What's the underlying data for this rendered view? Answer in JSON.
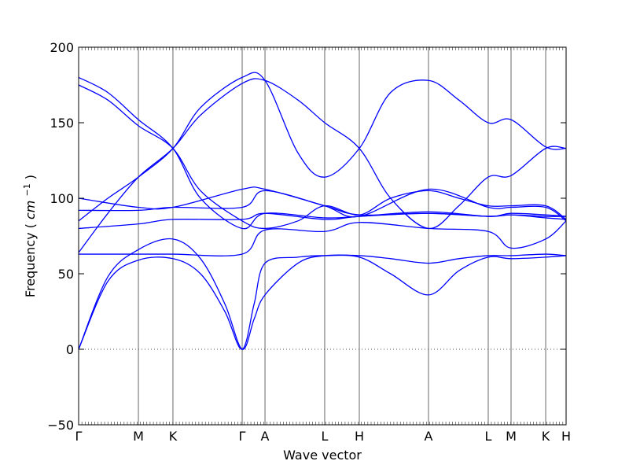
{
  "chart_data": {
    "type": "line",
    "xlabel": "Wave vector",
    "ylabel": "Frequency",
    "ylabel_unit": "cm",
    "ylabel_exp": "−1",
    "ylim": [
      -50,
      200
    ],
    "yticks": [
      -50,
      0,
      50,
      100,
      150,
      200
    ],
    "xlim": [
      0,
      1
    ],
    "high_symmetry_points": [
      {
        "label": "Γ",
        "x": 0.0
      },
      {
        "label": "M",
        "x": 0.1226
      },
      {
        "label": "K",
        "x": 0.1935
      },
      {
        "label": "Γ",
        "x": 0.3355
      },
      {
        "label": "A",
        "x": 0.3823
      },
      {
        "label": "L",
        "x": 0.5048
      },
      {
        "label": "H",
        "x": 0.5758
      },
      {
        "label": "A",
        "x": 0.7177
      },
      {
        "label": "L",
        "x": 0.8403
      },
      {
        "label": "M",
        "x": 0.8871
      },
      {
        "label": "K",
        "x": 0.9581
      },
      {
        "label": "H",
        "x": 1.0
      }
    ],
    "zero_line": true,
    "series": [
      {
        "values": [
          [
            0,
            0
          ],
          [
            0.06,
            45
          ],
          [
            0.1226,
            59
          ],
          [
            0.1935,
            60
          ],
          [
            0.25,
            50
          ],
          [
            0.3,
            25
          ],
          [
            0.3355,
            0
          ],
          [
            0.36,
            30
          ],
          [
            0.3823,
            57
          ],
          [
            0.45,
            61
          ],
          [
            0.5048,
            62
          ],
          [
            0.5758,
            61
          ],
          [
            0.64,
            50
          ],
          [
            0.7177,
            36
          ],
          [
            0.78,
            52
          ],
          [
            0.8403,
            61
          ],
          [
            0.8871,
            60
          ],
          [
            0.9581,
            61
          ],
          [
            1.0,
            62
          ]
        ]
      },
      {
        "values": [
          [
            0,
            0
          ],
          [
            0.06,
            48
          ],
          [
            0.1226,
            66
          ],
          [
            0.1935,
            73
          ],
          [
            0.25,
            60
          ],
          [
            0.3,
            30
          ],
          [
            0.3355,
            0
          ],
          [
            0.36,
            20
          ],
          [
            0.3823,
            36
          ],
          [
            0.45,
            57
          ],
          [
            0.5048,
            62
          ],
          [
            0.5758,
            62
          ],
          [
            0.64,
            60
          ],
          [
            0.7177,
            57
          ],
          [
            0.78,
            60
          ],
          [
            0.8403,
            62
          ],
          [
            0.8871,
            62
          ],
          [
            0.9581,
            63
          ],
          [
            1.0,
            62
          ]
        ]
      },
      {
        "values": [
          [
            0,
            63
          ],
          [
            0.1226,
            63
          ],
          [
            0.1935,
            63
          ],
          [
            0.3355,
            63
          ],
          [
            0.3823,
            79
          ],
          [
            0.5048,
            78
          ],
          [
            0.5758,
            84
          ],
          [
            0.7177,
            80
          ],
          [
            0.8403,
            78
          ],
          [
            0.8871,
            67
          ],
          [
            0.9581,
            73
          ],
          [
            1.0,
            85
          ]
        ]
      },
      {
        "values": [
          [
            0,
            64
          ],
          [
            0.06,
            90
          ],
          [
            0.1226,
            114
          ],
          [
            0.1935,
            133
          ],
          [
            0.25,
            155
          ],
          [
            0.3355,
            176
          ],
          [
            0.3823,
            178
          ],
          [
            0.45,
            165
          ],
          [
            0.5048,
            150
          ],
          [
            0.5758,
            133
          ],
          [
            0.64,
            100
          ],
          [
            0.7177,
            80
          ],
          [
            0.78,
            95
          ],
          [
            0.8403,
            114
          ],
          [
            0.8871,
            115
          ],
          [
            0.9581,
            133
          ],
          [
            1.0,
            133
          ]
        ]
      },
      {
        "values": [
          [
            0,
            85
          ],
          [
            0.06,
            100
          ],
          [
            0.1226,
            114
          ],
          [
            0.1935,
            133
          ],
          [
            0.25,
            160
          ],
          [
            0.3355,
            180
          ],
          [
            0.3823,
            178
          ],
          [
            0.45,
            130
          ],
          [
            0.5048,
            114
          ],
          [
            0.5758,
            133
          ],
          [
            0.64,
            170
          ],
          [
            0.7177,
            178
          ],
          [
            0.78,
            165
          ],
          [
            0.8403,
            150
          ],
          [
            0.8871,
            152
          ],
          [
            0.9581,
            134
          ],
          [
            1.0,
            133
          ]
        ]
      },
      {
        "values": [
          [
            0,
            175
          ],
          [
            0.06,
            165
          ],
          [
            0.1226,
            148
          ],
          [
            0.1935,
            133
          ],
          [
            0.25,
            105
          ],
          [
            0.3355,
            85
          ],
          [
            0.3823,
            80
          ],
          [
            0.45,
            85
          ],
          [
            0.5048,
            95
          ],
          [
            0.5758,
            89
          ],
          [
            0.64,
            100
          ],
          [
            0.7177,
            105
          ],
          [
            0.78,
            100
          ],
          [
            0.8403,
            95
          ],
          [
            0.8871,
            95
          ],
          [
            0.9581,
            95
          ],
          [
            1.0,
            86
          ]
        ]
      },
      {
        "values": [
          [
            0,
            180
          ],
          [
            0.06,
            170
          ],
          [
            0.1226,
            152
          ],
          [
            0.1935,
            133
          ],
          [
            0.25,
            100
          ],
          [
            0.3355,
            80
          ],
          [
            0.3823,
            90
          ],
          [
            0.5048,
            87
          ],
          [
            0.5758,
            88
          ],
          [
            0.7177,
            91
          ],
          [
            0.8403,
            88
          ],
          [
            0.8871,
            90
          ],
          [
            0.9581,
            89
          ],
          [
            1.0,
            88
          ]
        ]
      },
      {
        "values": [
          [
            0,
            80
          ],
          [
            0.1226,
            83
          ],
          [
            0.1935,
            86
          ],
          [
            0.3355,
            86
          ],
          [
            0.3823,
            90
          ],
          [
            0.5048,
            86
          ],
          [
            0.5758,
            88
          ],
          [
            0.7177,
            90
          ],
          [
            0.8403,
            88
          ],
          [
            0.8871,
            89
          ],
          [
            0.9581,
            87
          ],
          [
            1.0,
            86
          ]
        ]
      },
      {
        "values": [
          [
            0,
            92
          ],
          [
            0.1226,
            92
          ],
          [
            0.1935,
            94
          ],
          [
            0.3355,
            94
          ],
          [
            0.3823,
            105
          ],
          [
            0.5048,
            95
          ],
          [
            0.5758,
            89
          ],
          [
            0.7177,
            90
          ],
          [
            0.8403,
            88
          ],
          [
            0.8871,
            89
          ],
          [
            0.9581,
            88
          ],
          [
            1.0,
            88
          ]
        ]
      },
      {
        "values": [
          [
            0,
            100
          ],
          [
            0.1226,
            94
          ],
          [
            0.1935,
            94
          ],
          [
            0.3355,
            106
          ],
          [
            0.3823,
            106
          ],
          [
            0.5048,
            95
          ],
          [
            0.5758,
            88
          ],
          [
            0.7177,
            106
          ],
          [
            0.8403,
            94
          ],
          [
            0.8871,
            94
          ],
          [
            0.9581,
            94
          ],
          [
            1.0,
            85
          ]
        ]
      }
    ]
  }
}
